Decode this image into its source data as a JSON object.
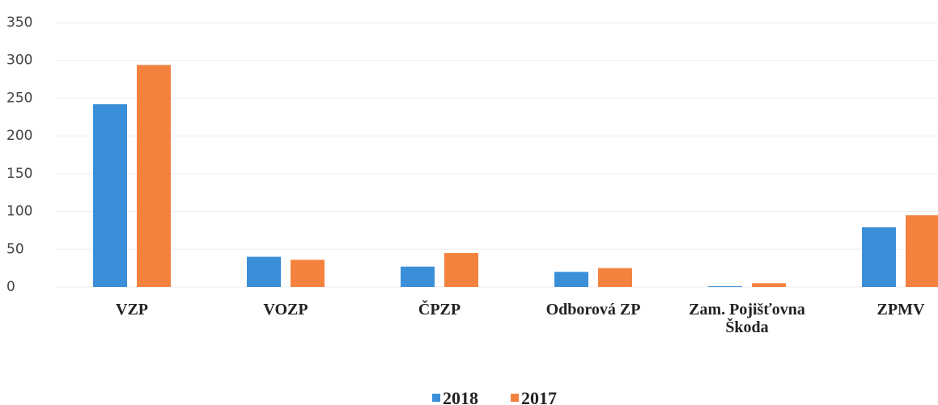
{
  "chart_data": {
    "type": "bar",
    "categories": [
      "VZP",
      "VOZP",
      "ČPZP",
      "Odborová ZP",
      "Zam. Pojišťovna Škoda",
      "ZPMV"
    ],
    "series": [
      {
        "name": "2018",
        "color": "#3a8fd8",
        "values": [
          242,
          40,
          27,
          20,
          1,
          79
        ]
      },
      {
        "name": "2017",
        "color": "#f4823f",
        "values": [
          294,
          36,
          45,
          25,
          5,
          95
        ]
      }
    ],
    "ylim": [
      0,
      350
    ],
    "yticks": [
      0,
      50,
      100,
      150,
      200,
      250,
      300,
      350
    ],
    "grid": true,
    "legend": "bottom"
  }
}
